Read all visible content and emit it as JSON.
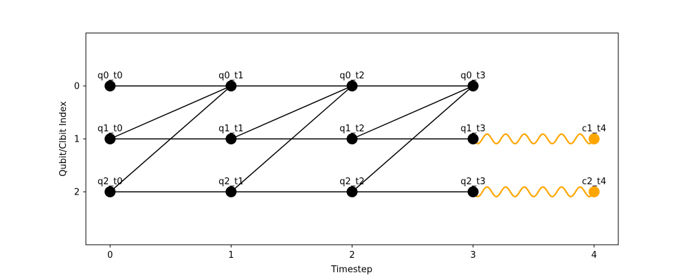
{
  "chart_data": {
    "type": "scatter",
    "title": "",
    "xlabel": "Timestep",
    "ylabel": "Qubit/Clbit Index",
    "xlim": [
      -0.2,
      4.2
    ],
    "ylim": [
      3.0,
      -1.0
    ],
    "x_ticks": [
      "0",
      "1",
      "2",
      "3",
      "4"
    ],
    "y_ticks": [
      "0",
      "1",
      "2"
    ],
    "grid": false,
    "nodes": [
      {
        "id": "q0_t0",
        "label": "q0_t0",
        "x": 0,
        "y": 0,
        "color": "#000000"
      },
      {
        "id": "q0_t1",
        "label": "q0_t1",
        "x": 1,
        "y": 0,
        "color": "#000000"
      },
      {
        "id": "q0_t2",
        "label": "q0_t2",
        "x": 2,
        "y": 0,
        "color": "#000000"
      },
      {
        "id": "q0_t3",
        "label": "q0_t3",
        "x": 3,
        "y": 0,
        "color": "#000000"
      },
      {
        "id": "q1_t0",
        "label": "q1_t0",
        "x": 0,
        "y": 1,
        "color": "#000000"
      },
      {
        "id": "q1_t1",
        "label": "q1_t1",
        "x": 1,
        "y": 1,
        "color": "#000000"
      },
      {
        "id": "q1_t2",
        "label": "q1_t2",
        "x": 2,
        "y": 1,
        "color": "#000000"
      },
      {
        "id": "q1_t3",
        "label": "q1_t3",
        "x": 3,
        "y": 1,
        "color": "#000000"
      },
      {
        "id": "q2_t0",
        "label": "q2_t0",
        "x": 0,
        "y": 2,
        "color": "#000000"
      },
      {
        "id": "q2_t1",
        "label": "q2_t1",
        "x": 1,
        "y": 2,
        "color": "#000000"
      },
      {
        "id": "q2_t2",
        "label": "q2_t2",
        "x": 2,
        "y": 2,
        "color": "#000000"
      },
      {
        "id": "q2_t3",
        "label": "q2_t3",
        "x": 3,
        "y": 2,
        "color": "#000000"
      },
      {
        "id": "c1_t4",
        "label": "c1_t4",
        "x": 4,
        "y": 1,
        "color": "#FFA500"
      },
      {
        "id": "c2_t4",
        "label": "c2_t4",
        "x": 4,
        "y": 2,
        "color": "#FFA500"
      }
    ],
    "edges": [
      {
        "from": "q0_t0",
        "to": "q0_t1",
        "style": "straight"
      },
      {
        "from": "q0_t1",
        "to": "q0_t2",
        "style": "straight"
      },
      {
        "from": "q0_t2",
        "to": "q0_t3",
        "style": "straight"
      },
      {
        "from": "q1_t0",
        "to": "q1_t1",
        "style": "straight"
      },
      {
        "from": "q1_t1",
        "to": "q1_t2",
        "style": "straight"
      },
      {
        "from": "q1_t2",
        "to": "q1_t3",
        "style": "straight"
      },
      {
        "from": "q2_t0",
        "to": "q2_t1",
        "style": "straight"
      },
      {
        "from": "q2_t1",
        "to": "q2_t2",
        "style": "straight"
      },
      {
        "from": "q2_t2",
        "to": "q2_t3",
        "style": "straight"
      },
      {
        "from": "q1_t0",
        "to": "q0_t1",
        "style": "straight"
      },
      {
        "from": "q2_t0",
        "to": "q0_t1",
        "style": "straight"
      },
      {
        "from": "q1_t1",
        "to": "q0_t2",
        "style": "straight"
      },
      {
        "from": "q2_t1",
        "to": "q0_t2",
        "style": "straight"
      },
      {
        "from": "q1_t2",
        "to": "q0_t3",
        "style": "straight"
      },
      {
        "from": "q2_t2",
        "to": "q0_t3",
        "style": "straight"
      },
      {
        "from": "q1_t3",
        "to": "c1_t4",
        "style": "wavy",
        "color": "#FFA500"
      },
      {
        "from": "q2_t3",
        "to": "c2_t4",
        "style": "wavy",
        "color": "#FFA500"
      }
    ]
  }
}
